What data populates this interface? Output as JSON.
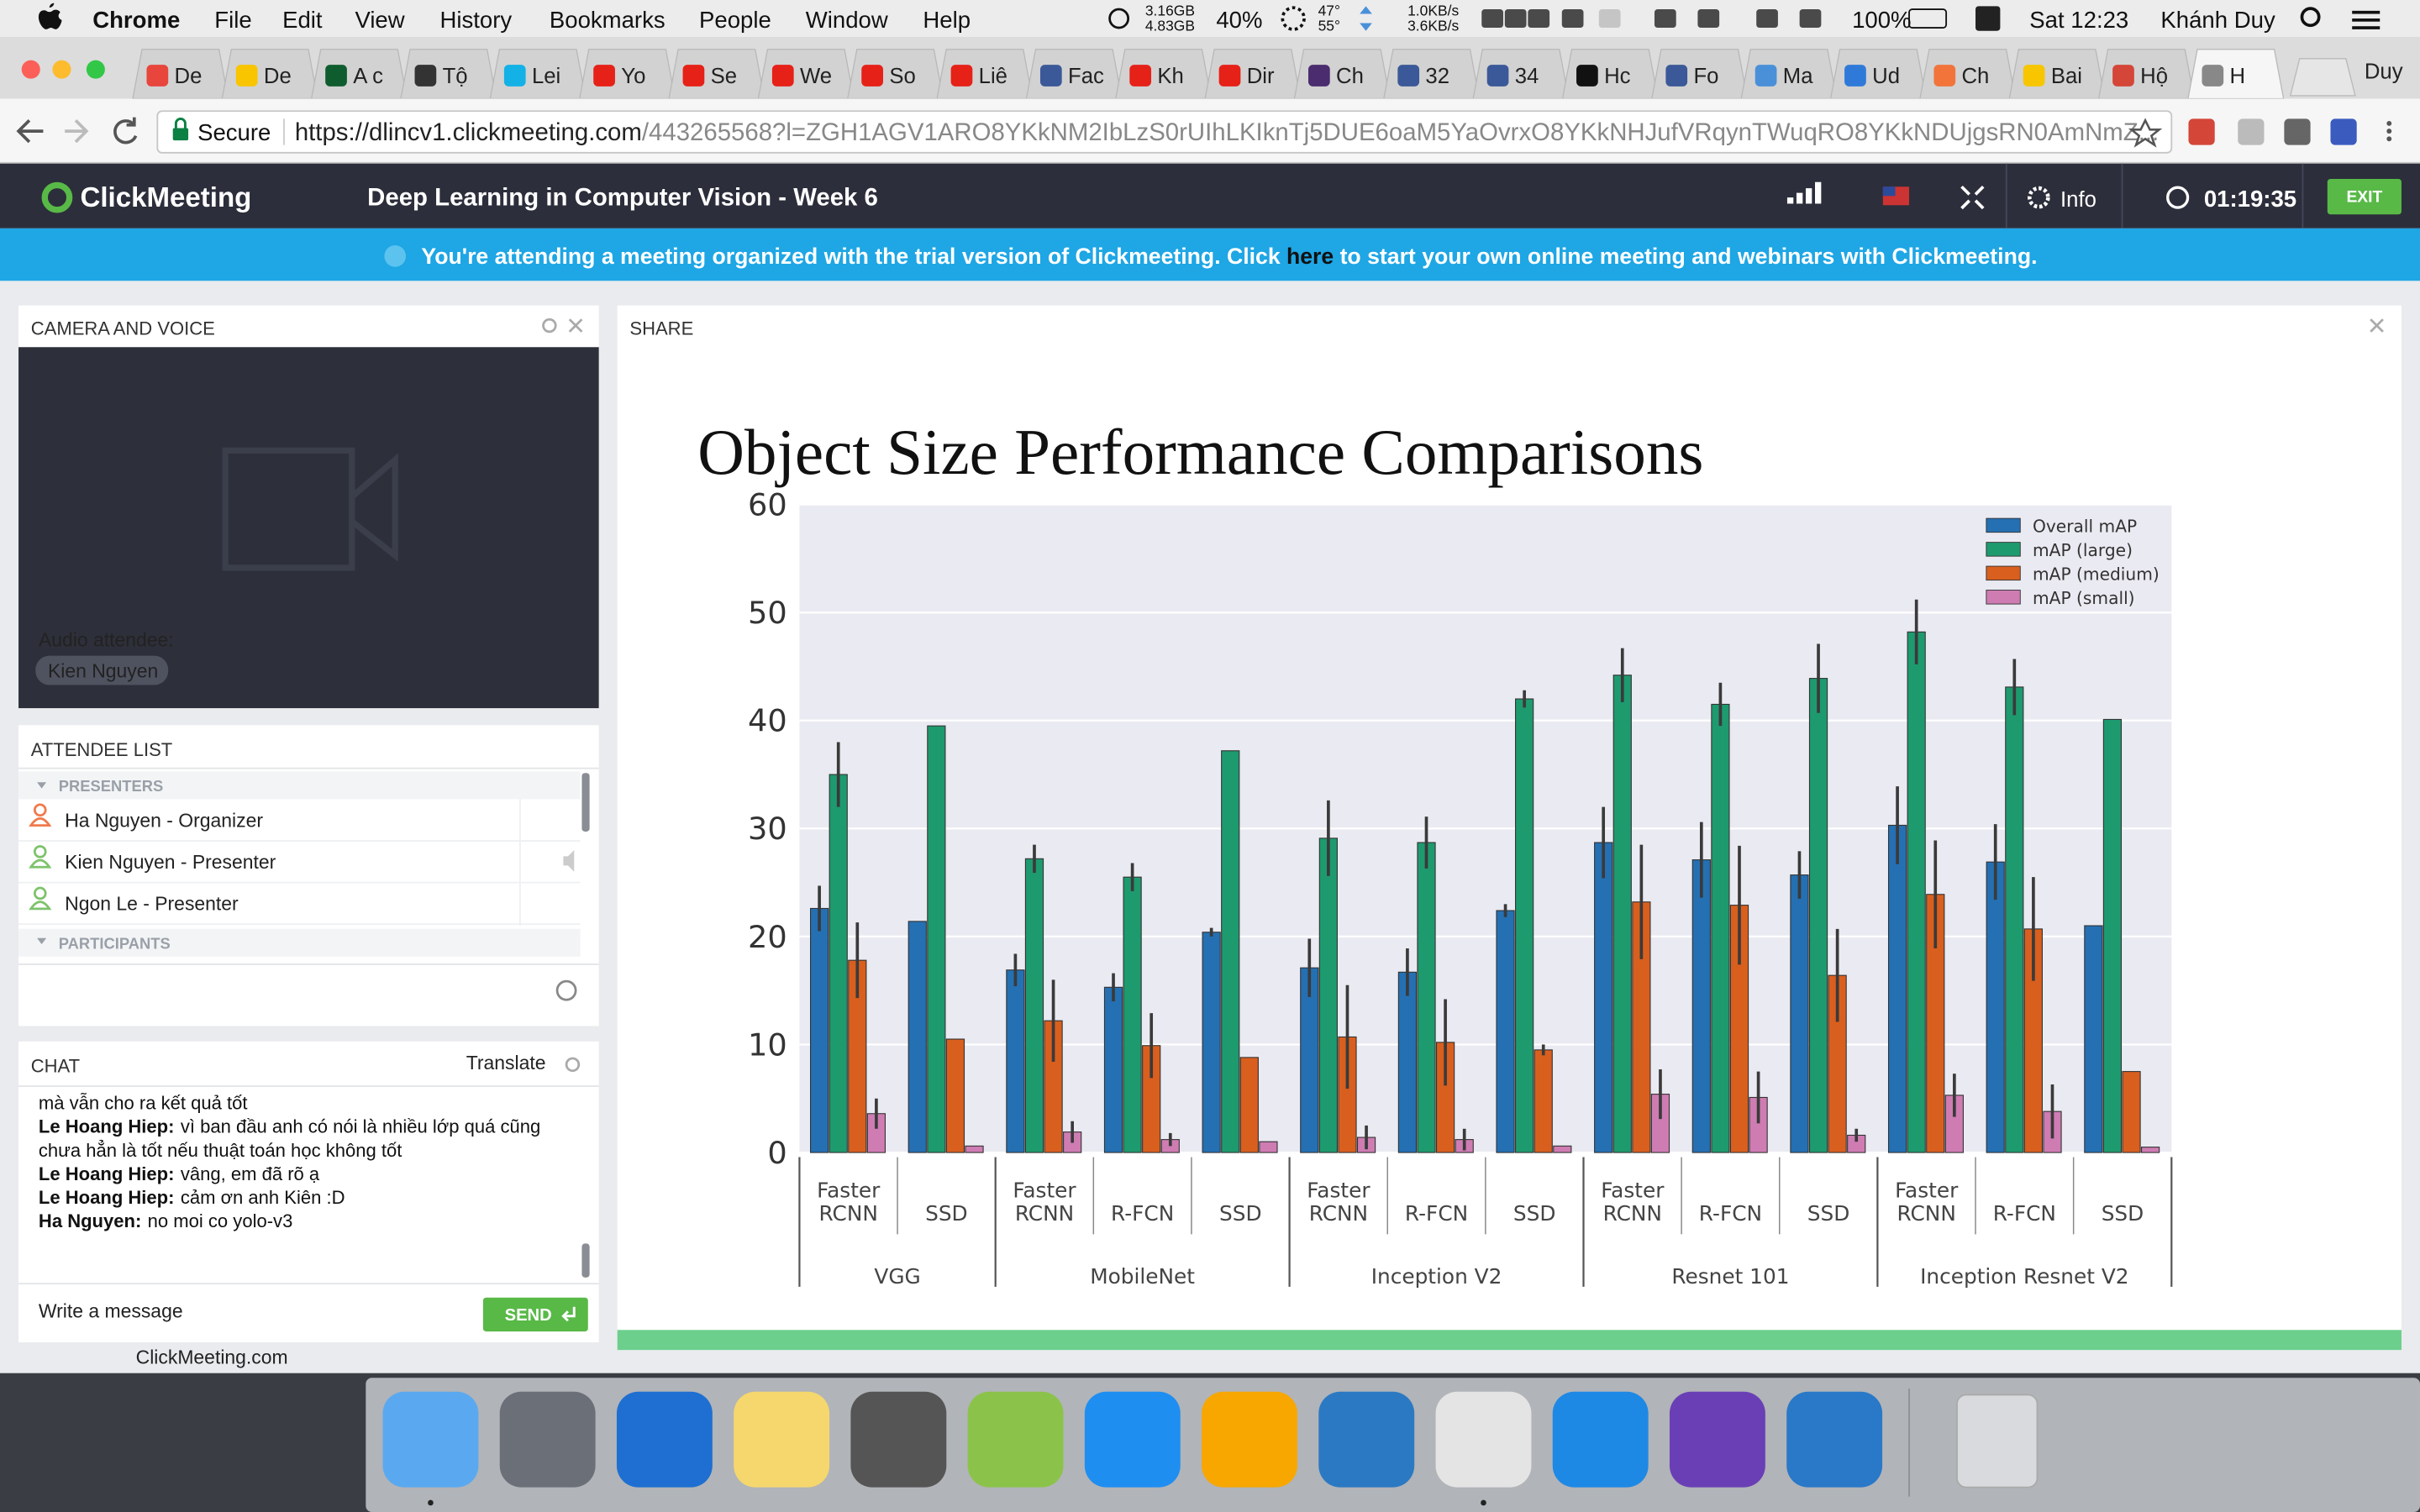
{
  "menu_bar": {
    "app": "Chrome",
    "items": [
      "File",
      "Edit",
      "View",
      "History",
      "Bookmarks",
      "People",
      "Window",
      "Help"
    ],
    "status": {
      "memory": [
        "3.16GB",
        "4.83GB"
      ],
      "cpu": "40%",
      "temps": [
        "47°",
        "55°"
      ],
      "network": [
        "1.0KB/s",
        "3.6KB/s"
      ],
      "battery": "100%",
      "clock": "Sat 12:23",
      "user": "Khánh Duy"
    }
  },
  "tabs": [
    "De",
    "De",
    "A c",
    "Tộ",
    "Lei",
    "Yo",
    "Se",
    "We",
    "So",
    "Liê",
    "Fac",
    "Kh",
    "Dir",
    "Ch",
    "32",
    "34",
    "Hc",
    "Fo",
    "Ma",
    "Ud",
    "Ch",
    "Bai",
    "Hộ",
    "H"
  ],
  "profile": "Duy",
  "address_bar": {
    "secure": "Secure",
    "url_host": "https://dlincv1.clickmeeting.com",
    "url_rest": "/443265568?l=ZGH1AGV1ARO8YKkNM2IbLzS0rUIhLKIknTj5DUE6oaM5YaOvrxO8YKkNHJufVRqynTWuqRO8YKkNDUjgsRN0AmNmZ..."
  },
  "app_header": {
    "logo": "ClickMeeting",
    "title": "Deep Learning in Computer Vision - Week 6",
    "info": "Info",
    "timer": "01:19:35",
    "exit": "EXIT"
  },
  "banner": {
    "before": "You're attending a meeting organized with the trial version of Clickmeeting. Click",
    "link": "here",
    "after": "to start your own online meeting and webinars with Clickmeeting."
  },
  "camera": {
    "title": "CAMERA AND VOICE",
    "audio_label": "Audio attendee:",
    "attendee": "Kien Nguyen"
  },
  "attendees": {
    "title": "ATTENDEE LIST",
    "presenters_label": "PRESENTERS",
    "presenters": [
      "Ha Nguyen - Organizer",
      "Kien Nguyen  - Presenter",
      "Ngon Le - Presenter"
    ],
    "participants_label": "PARTICIPANTS"
  },
  "chat": {
    "title": "CHAT",
    "translate": "Translate",
    "lines": [
      {
        "text": "mà vẫn cho ra kết quả tốt"
      },
      {
        "author": "Le Hoang Hiep:",
        "text": "vì ban đầu anh có nói là nhiều lớp quá cũng"
      },
      {
        "text": "chưa hẳn là tốt nếu thuật toán học không tốt"
      },
      {
        "author": "Le Hoang Hiep:",
        "text": "vâng, em đã rõ ạ"
      },
      {
        "author": "Le Hoang Hiep:",
        "text": "cảm ơn anh Kiên :D"
      },
      {
        "author": "Ha Nguyen:",
        "text": "no moi co yolo-v3"
      }
    ],
    "placeholder": "Write a message",
    "send": "SEND"
  },
  "footer": "ClickMeeting.com",
  "share": {
    "title": "SHARE"
  },
  "chart_data": {
    "type": "bar",
    "title": "Object Size Performance Comparisons",
    "categories": [
      "Faster RCNN",
      "SSD",
      "Faster RCNN",
      "R-FCN",
      "SSD",
      "Faster RCNN",
      "R-FCN",
      "SSD",
      "Faster RCNN",
      "R-FCN",
      "SSD",
      "Faster RCNN",
      "R-FCN",
      "SSD"
    ],
    "category_groups": [
      "VGG",
      "VGG",
      "MobileNet",
      "MobileNet",
      "MobileNet",
      "Inception V2",
      "Inception V2",
      "Inception V2",
      "Resnet 101",
      "Resnet 101",
      "Resnet 101",
      "Inception Resnet V2",
      "Inception Resnet V2",
      "Inception Resnet V2"
    ],
    "series": [
      {
        "name": "Overall mAP",
        "color": "#2470b3",
        "values": [
          22.6,
          21.4,
          16.9,
          15.3,
          20.4,
          17.1,
          16.7,
          22.4,
          28.7,
          27.1,
          25.7,
          30.3,
          26.9,
          21.0
        ],
        "errors": [
          2.1,
          0,
          1.5,
          1.3,
          0.4,
          2.7,
          2.2,
          0.6,
          3.3,
          3.5,
          2.2,
          3.6,
          3.5,
          0
        ]
      },
      {
        "name": "mAP (large)",
        "color": "#1e9a6f",
        "values": [
          35.0,
          39.5,
          27.2,
          25.5,
          37.2,
          29.1,
          28.7,
          42.0,
          44.2,
          41.5,
          43.9,
          48.2,
          43.1,
          40.1
        ],
        "errors": [
          3.0,
          0,
          1.3,
          1.3,
          0,
          3.5,
          2.4,
          0.8,
          2.5,
          2.0,
          3.2,
          3.0,
          2.6,
          0
        ]
      },
      {
        "name": "mAP (medium)",
        "color": "#d95f1e",
        "values": [
          17.8,
          10.5,
          12.2,
          9.9,
          8.8,
          10.7,
          10.2,
          9.5,
          23.2,
          22.9,
          16.4,
          23.9,
          20.7,
          7.5
        ],
        "errors": [
          3.5,
          0,
          3.8,
          3.0,
          0,
          4.8,
          4.0,
          0.5,
          5.3,
          5.5,
          4.3,
          5.0,
          4.8,
          0
        ]
      },
      {
        "name": "mAP (small)",
        "color": "#cf7cb3",
        "values": [
          3.6,
          0.6,
          1.9,
          1.2,
          1.0,
          1.4,
          1.2,
          0.6,
          5.4,
          5.1,
          1.6,
          5.3,
          3.8,
          0.5
        ],
        "errors": [
          1.4,
          0,
          1.0,
          0.6,
          0,
          1.1,
          1.0,
          0,
          2.3,
          2.4,
          0.6,
          2.0,
          2.5,
          0
        ]
      }
    ],
    "ylim": [
      0,
      60
    ],
    "yticks": [
      0,
      10,
      20,
      30,
      40,
      50,
      60
    ],
    "grid": true,
    "legend": "upper right"
  }
}
